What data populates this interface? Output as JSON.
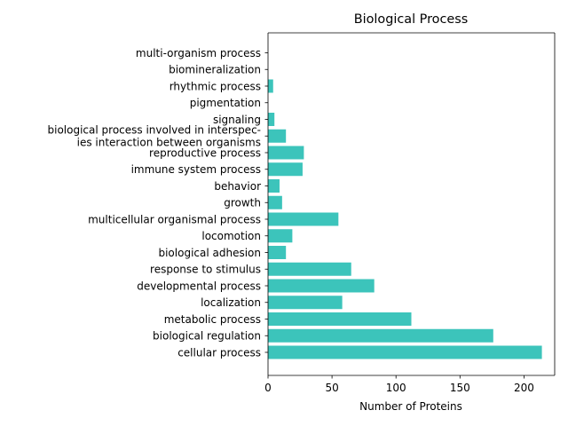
{
  "chart_data": {
    "type": "bar",
    "orientation": "horizontal",
    "title": "Biological Process",
    "xlabel": "Number of Proteins",
    "ylabel": "",
    "xlim": [
      0,
      224
    ],
    "xticks": [
      0,
      50,
      100,
      150,
      200
    ],
    "grid": false,
    "bar_color": "#3cc4bb",
    "categories": [
      "cellular process",
      "biological regulation",
      "metabolic process",
      "localization",
      "developmental process",
      "response to stimulus",
      "biological adhesion",
      "locomotion",
      "multicellular organismal process",
      "growth",
      "behavior",
      "immune system process",
      "reproductive process",
      "biological process involved in interspec-\nies interaction between organisms",
      "signaling",
      "pigmentation",
      "rhythmic process",
      "biomineralization",
      "multi-organism process"
    ],
    "values": [
      214,
      176,
      112,
      58,
      83,
      65,
      14,
      19,
      55,
      11,
      9,
      27,
      28,
      14,
      5,
      0,
      4,
      0,
      0
    ]
  }
}
